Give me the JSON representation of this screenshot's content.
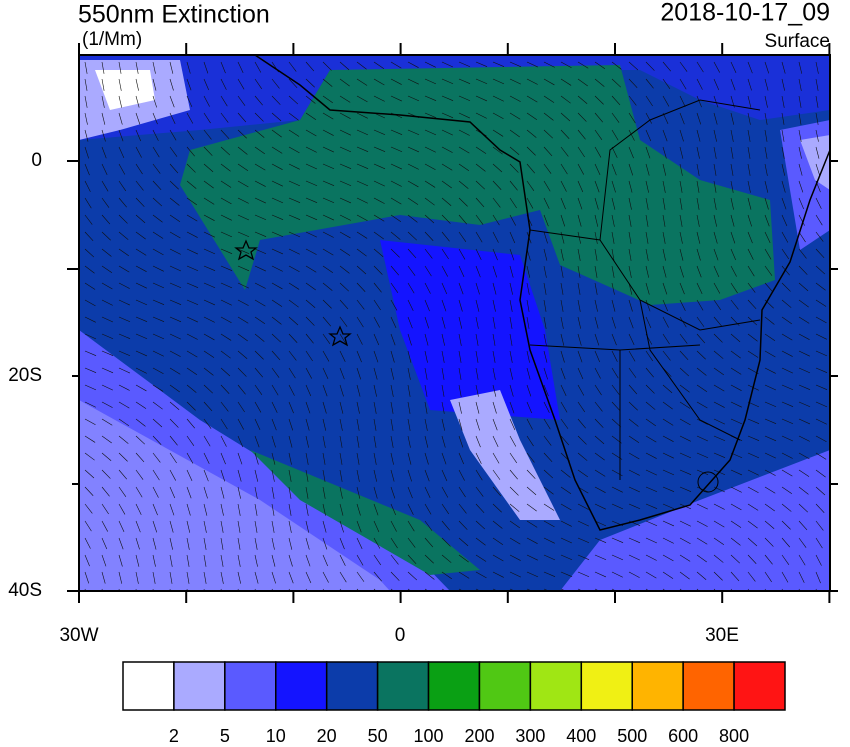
{
  "title": "550nm Extinction",
  "units": "(1/Mm)",
  "date": "2018-10-17_09",
  "level": "Surface",
  "y_axis": {
    "labels": [
      "0",
      "20S",
      "40S"
    ]
  },
  "x_axis": {
    "labels": [
      "30W",
      "0",
      "30E"
    ]
  },
  "colorbar": {
    "colors": [
      "#ffffff",
      "#aaaaff",
      "#5a5aff",
      "#1414ff",
      "#0c3caa",
      "#0a7460",
      "#0aa014",
      "#50c814",
      "#a0e614",
      "#f0f014",
      "#ffb400",
      "#ff6400",
      "#ff1414"
    ],
    "labels": [
      2,
      5,
      10,
      20,
      50,
      100,
      200,
      300,
      400,
      500,
      600,
      800
    ]
  }
}
